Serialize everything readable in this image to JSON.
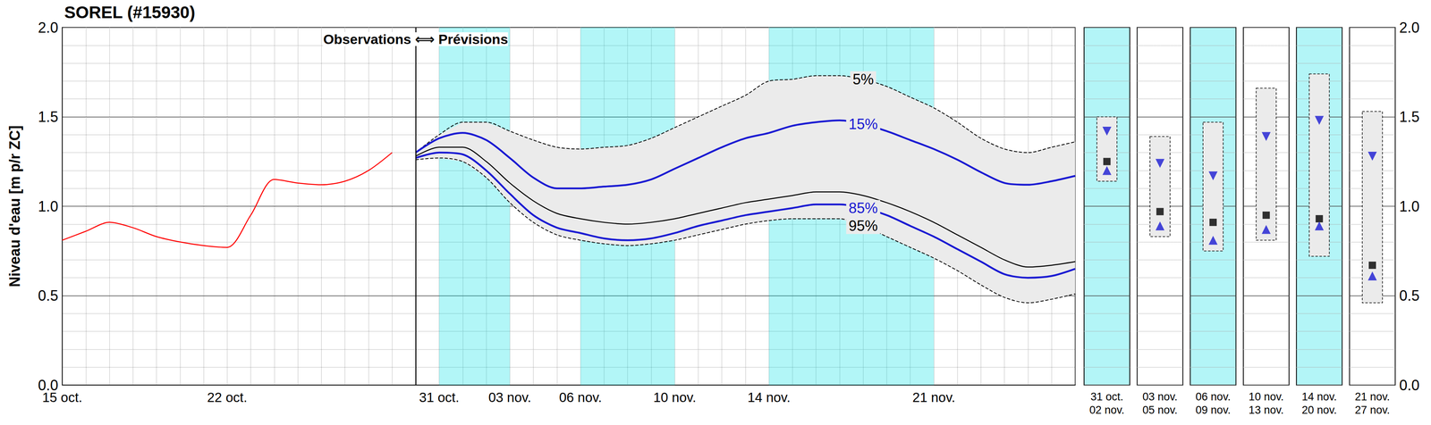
{
  "chart_data": {
    "type": "line",
    "title": "SOREL (#15930)",
    "ylabel": "Niveau d'eau [m p/r ZC]",
    "annotation": "Observations ⟺ Prévisions",
    "categories": [
      "15 oct.",
      null,
      null,
      null,
      null,
      null,
      null,
      "22 oct.",
      null,
      null,
      null,
      null,
      null,
      null,
      null,
      null,
      "31 oct.",
      null,
      null,
      "03 nov.",
      null,
      null,
      "06 nov.",
      null,
      null,
      null,
      "10 nov.",
      null,
      null,
      null,
      "14 nov.",
      null,
      null,
      null,
      null,
      null,
      null,
      "21 nov.",
      null,
      null,
      null,
      null,
      null,
      null
    ],
    "series": [
      {
        "color": "#ff0000",
        "values": [
          0.81,
          0.86,
          0.91,
          0.88,
          0.83,
          0.8,
          0.78,
          0.77,
          0.95,
          1.15,
          1.13,
          1.12,
          1.14,
          1.2,
          1.3,
          null,
          null,
          null,
          null,
          null,
          null,
          null,
          null,
          null,
          null,
          null,
          null,
          null,
          null,
          null,
          null,
          null,
          null,
          null,
          null,
          null,
          null,
          null,
          null,
          null,
          null,
          null,
          null,
          null
        ]
      },
      {
        "name": "5%",
        "color": "#000000",
        "line_style": "dashed",
        "values": [
          null,
          null,
          null,
          null,
          null,
          null,
          null,
          null,
          null,
          null,
          null,
          null,
          null,
          null,
          null,
          1.3,
          1.4,
          1.47,
          1.47,
          1.42,
          1.37,
          1.33,
          1.32,
          1.33,
          1.34,
          1.38,
          1.44,
          1.5,
          1.56,
          1.62,
          1.7,
          1.71,
          1.73,
          1.73,
          1.71,
          1.67,
          1.61,
          1.55,
          1.47,
          1.38,
          1.32,
          1.3,
          1.33,
          1.36
        ]
      },
      {
        "name": "15%",
        "color": "#1a1ad2",
        "values": [
          null,
          null,
          null,
          null,
          null,
          null,
          null,
          null,
          null,
          null,
          null,
          null,
          null,
          null,
          null,
          1.3,
          1.38,
          1.41,
          1.37,
          1.27,
          1.16,
          1.1,
          1.1,
          1.11,
          1.12,
          1.15,
          1.21,
          1.27,
          1.33,
          1.38,
          1.41,
          1.45,
          1.47,
          1.48,
          1.46,
          1.42,
          1.37,
          1.32,
          1.26,
          1.19,
          1.13,
          1.12,
          1.14,
          1.17
        ]
      },
      {
        "color": "#000000",
        "values": [
          null,
          null,
          null,
          null,
          null,
          null,
          null,
          null,
          null,
          null,
          null,
          null,
          null,
          null,
          null,
          1.28,
          1.33,
          1.33,
          1.25,
          1.13,
          1.03,
          0.96,
          0.93,
          0.91,
          0.9,
          0.91,
          0.93,
          0.96,
          0.99,
          1.02,
          1.04,
          1.06,
          1.08,
          1.08,
          1.06,
          1.02,
          0.97,
          0.91,
          0.84,
          0.77,
          0.7,
          0.66,
          0.67,
          0.69
        ]
      },
      {
        "name": "85%",
        "color": "#1a1ad2",
        "values": [
          null,
          null,
          null,
          null,
          null,
          null,
          null,
          null,
          null,
          null,
          null,
          null,
          null,
          null,
          null,
          1.27,
          1.3,
          1.29,
          1.2,
          1.07,
          0.95,
          0.88,
          0.85,
          0.82,
          0.81,
          0.82,
          0.85,
          0.89,
          0.92,
          0.95,
          0.97,
          0.99,
          1.01,
          1.01,
          0.99,
          0.95,
          0.89,
          0.83,
          0.76,
          0.69,
          0.62,
          0.6,
          0.61,
          0.65
        ]
      },
      {
        "name": "95%",
        "color": "#000000",
        "line_style": "dashed",
        "values": [
          null,
          null,
          null,
          null,
          null,
          null,
          null,
          null,
          null,
          null,
          null,
          null,
          null,
          null,
          null,
          1.26,
          1.27,
          1.25,
          1.16,
          1.02,
          0.91,
          0.84,
          0.81,
          0.79,
          0.78,
          0.79,
          0.81,
          0.84,
          0.87,
          0.9,
          0.92,
          0.93,
          0.93,
          0.93,
          0.89,
          0.83,
          0.77,
          0.71,
          0.64,
          0.56,
          0.49,
          0.46,
          0.48,
          0.51
        ]
      }
    ],
    "highlight": [
      {
        "from": "31 oct.",
        "to": "03 nov."
      },
      {
        "from": "06 nov.",
        "to": "10 nov."
      },
      {
        "from": "14 nov.",
        "to": "21 nov."
      }
    ],
    "ylim": [
      0,
      2
    ],
    "yticks": [
      {
        "value": 0,
        "label": "0.0"
      },
      0.5,
      {
        "value": 1,
        "label": "1.0"
      },
      1.5,
      {
        "value": 2,
        "label": "2.0"
      }
    ],
    "grid": true,
    "panel_markers": {
      "median": {
        "marker": "square",
        "color": "#000000"
      },
      "p15": {
        "marker": "triangle-down",
        "color": "#1a1ad2"
      },
      "p85": {
        "marker": "triangle-up",
        "color": "#1a1ad2"
      }
    },
    "panels": [
      {
        "start": "31 oct.",
        "end": "02 nov.",
        "shaded": true,
        "p5": 1.5,
        "p15": 1.42,
        "median": 1.25,
        "p85": 1.2,
        "p95": 1.14
      },
      {
        "start": "03 nov.",
        "end": "05 nov.",
        "shaded": false,
        "p5": 1.39,
        "p15": 1.24,
        "median": 0.97,
        "p85": 0.89,
        "p95": 0.83
      },
      {
        "start": "06 nov.",
        "end": "09 nov.",
        "shaded": true,
        "p5": 1.47,
        "p15": 1.17,
        "median": 0.91,
        "p85": 0.81,
        "p95": 0.75
      },
      {
        "start": "10 nov.",
        "end": "13 nov.",
        "shaded": false,
        "p5": 1.66,
        "p15": 1.39,
        "median": 0.95,
        "p85": 0.87,
        "p95": 0.81
      },
      {
        "start": "14 nov.",
        "end": "20 nov.",
        "shaded": true,
        "p5": 1.74,
        "p15": 1.48,
        "median": 0.93,
        "p85": 0.89,
        "p95": 0.72
      },
      {
        "start": "21 nov.",
        "end": "27 nov.",
        "shaded": false,
        "p5": 1.53,
        "p15": 1.28,
        "median": 0.67,
        "p85": 0.61,
        "p95": 0.46
      }
    ]
  }
}
